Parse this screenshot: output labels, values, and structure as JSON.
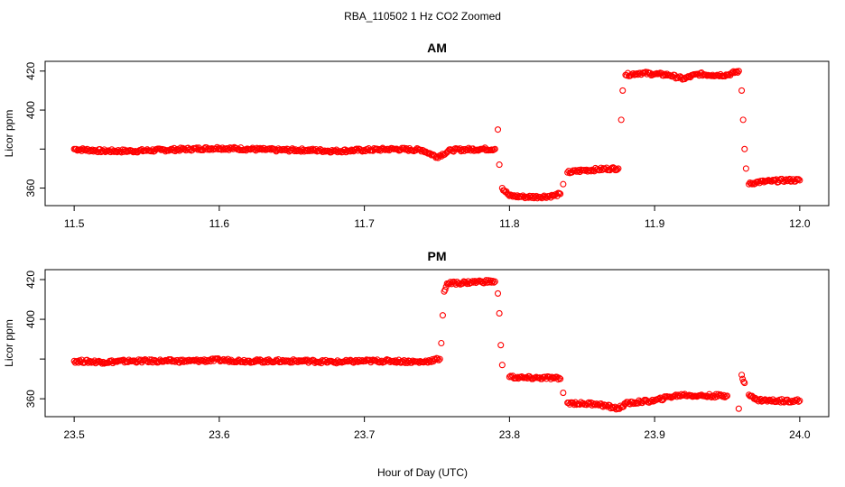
{
  "figure": {
    "title": "RBA_110502  1 Hz CO2 Zoomed",
    "xlabel": "Hour of Day (UTC)"
  },
  "colors": {
    "points": "#ff0000",
    "axes": "#000000",
    "background": "#ffffff"
  },
  "chart_data": [
    {
      "type": "scatter",
      "title": "AM",
      "xlabel": "",
      "ylabel": "Licor ppm",
      "xlim": [
        11.48,
        12.02
      ],
      "ylim": [
        351,
        425
      ],
      "x_ticks": [
        "11.5",
        "11.6",
        "11.7",
        "11.8",
        "11.9",
        "12.0"
      ],
      "x_tick_values": [
        11.5,
        11.6,
        11.7,
        11.8,
        11.9,
        12.0
      ],
      "y_ticks": [
        "360",
        "",
        "400",
        "420"
      ],
      "y_tick_values": [
        360,
        380,
        400,
        420
      ],
      "marker": "open-circle",
      "series": [
        {
          "values": [
            [
              11.5,
              380
            ],
            [
              11.52,
              379
            ],
            [
              11.54,
              379
            ],
            [
              11.56,
              379.5
            ],
            [
              11.58,
              380
            ],
            [
              11.6,
              380.5
            ],
            [
              11.62,
              380
            ],
            [
              11.64,
              379.5
            ],
            [
              11.66,
              379.5
            ],
            [
              11.68,
              379
            ],
            [
              11.7,
              379.5
            ],
            [
              11.72,
              380
            ],
            [
              11.74,
              379.5
            ],
            [
              11.75,
              376
            ],
            [
              11.76,
              379.5
            ],
            [
              11.78,
              380
            ],
            [
              11.79,
              380
            ],
            [
              11.792,
              390
            ],
            [
              11.793,
              372
            ],
            [
              11.795,
              360
            ],
            [
              11.8,
              356
            ],
            [
              11.81,
              355.5
            ],
            [
              11.82,
              355.5
            ],
            [
              11.83,
              356
            ],
            [
              11.835,
              357
            ],
            [
              11.837,
              362
            ],
            [
              11.84,
              368
            ],
            [
              11.85,
              369
            ],
            [
              11.86,
              369.5
            ],
            [
              11.87,
              370
            ],
            [
              11.875,
              370
            ],
            [
              11.877,
              395
            ],
            [
              11.878,
              410
            ],
            [
              11.88,
              418
            ],
            [
              11.89,
              419
            ],
            [
              11.9,
              418.5
            ],
            [
              11.91,
              418
            ],
            [
              11.92,
              416
            ],
            [
              11.93,
              418.5
            ],
            [
              11.94,
              418
            ],
            [
              11.95,
              418
            ],
            [
              11.958,
              420
            ],
            [
              11.96,
              410
            ],
            [
              11.961,
              395
            ],
            [
              11.962,
              380
            ],
            [
              11.963,
              370
            ],
            [
              11.965,
              362
            ],
            [
              11.97,
              363
            ],
            [
              11.98,
              363.5
            ],
            [
              11.99,
              364
            ],
            [
              12.0,
              364
            ]
          ]
        }
      ]
    },
    {
      "type": "scatter",
      "title": "PM",
      "xlabel": "Hour of Day (UTC)",
      "ylabel": "Licor ppm",
      "xlim": [
        23.48,
        24.02
      ],
      "ylim": [
        351,
        425
      ],
      "x_ticks": [
        "23.5",
        "23.6",
        "23.7",
        "23.8",
        "23.9",
        "24.0"
      ],
      "x_tick_values": [
        23.5,
        23.6,
        23.7,
        23.8,
        23.9,
        24.0
      ],
      "y_ticks": [
        "360",
        "",
        "400",
        "420"
      ],
      "y_tick_values": [
        360,
        380,
        400,
        420
      ],
      "marker": "open-circle",
      "series": [
        {
          "values": [
            [
              23.5,
              379
            ],
            [
              23.52,
              378.5
            ],
            [
              23.54,
              379
            ],
            [
              23.56,
              379
            ],
            [
              23.58,
              379
            ],
            [
              23.6,
              379.5
            ],
            [
              23.62,
              379
            ],
            [
              23.64,
              379
            ],
            [
              23.66,
              379
            ],
            [
              23.68,
              378.5
            ],
            [
              23.7,
              379
            ],
            [
              23.72,
              379
            ],
            [
              23.74,
              378.5
            ],
            [
              23.752,
              380
            ],
            [
              23.753,
              388
            ],
            [
              23.754,
              402
            ],
            [
              23.755,
              414
            ],
            [
              23.757,
              418
            ],
            [
              23.77,
              418.5
            ],
            [
              23.78,
              419
            ],
            [
              23.79,
              419
            ],
            [
              23.792,
              413
            ],
            [
              23.793,
              403
            ],
            [
              23.794,
              387
            ],
            [
              23.795,
              377
            ],
            [
              23.8,
              371
            ],
            [
              23.81,
              370.5
            ],
            [
              23.82,
              370.5
            ],
            [
              23.83,
              370.5
            ],
            [
              23.835,
              370
            ],
            [
              23.837,
              363
            ],
            [
              23.84,
              358
            ],
            [
              23.85,
              357.5
            ],
            [
              23.86,
              357.5
            ],
            [
              23.875,
              355
            ],
            [
              23.88,
              357.5
            ],
            [
              23.89,
              358.5
            ],
            [
              23.9,
              359
            ],
            [
              23.91,
              361
            ],
            [
              23.92,
              362
            ],
            [
              23.93,
              361.5
            ],
            [
              23.94,
              361.5
            ],
            [
              23.95,
              361.5
            ],
            [
              23.958,
              355
            ],
            [
              23.96,
              372
            ],
            [
              23.962,
              368
            ],
            [
              23.965,
              362
            ],
            [
              23.97,
              359.5
            ],
            [
              23.98,
              359
            ],
            [
              23.99,
              359
            ],
            [
              24.0,
              359
            ]
          ]
        }
      ]
    }
  ]
}
